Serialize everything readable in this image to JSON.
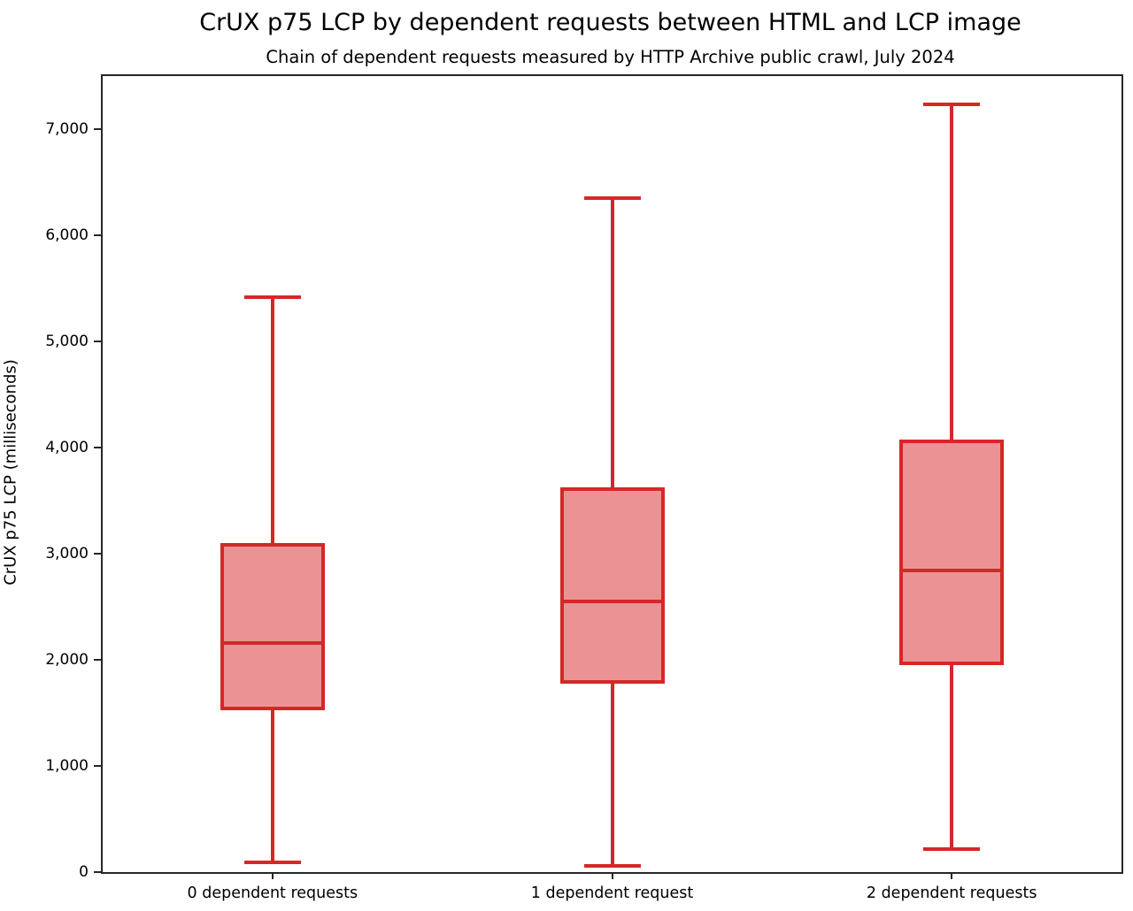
{
  "chart_data": {
    "type": "boxplot",
    "title": "CrUX p75 LCP by dependent requests between HTML and LCP image",
    "subtitle": "Chain of dependent requests measured by HTTP Archive public crawl, July 2024",
    "ylabel": "CrUX p75 LCP (milliseconds)",
    "xlabel": "",
    "categories": [
      "0 dependent requests",
      "1 dependent request",
      "2 dependent requests"
    ],
    "series": [
      {
        "category": "0 dependent requests",
        "whisker_low": 90,
        "q1": 1540,
        "median": 2160,
        "q3": 3080,
        "whisker_high": 5420
      },
      {
        "category": "1 dependent request",
        "whisker_low": 60,
        "q1": 1790,
        "median": 2550,
        "q3": 3610,
        "whisker_high": 6350
      },
      {
        "category": "2 dependent requests",
        "whisker_low": 220,
        "q1": 1970,
        "median": 2840,
        "q3": 4060,
        "whisker_high": 7230
      }
    ],
    "ylim": [
      0,
      7500
    ],
    "yticks": [
      0,
      1000,
      2000,
      3000,
      4000,
      5000,
      6000,
      7000
    ],
    "ytick_labels": [
      "0",
      "1,000",
      "2,000",
      "3,000",
      "4,000",
      "5,000",
      "6,000",
      "7,000"
    ],
    "grid": false,
    "legend": null,
    "colors": {
      "box_line": "#d62728",
      "box_fill": "#eb9394",
      "axis": "#262626",
      "text": "#000000"
    }
  }
}
